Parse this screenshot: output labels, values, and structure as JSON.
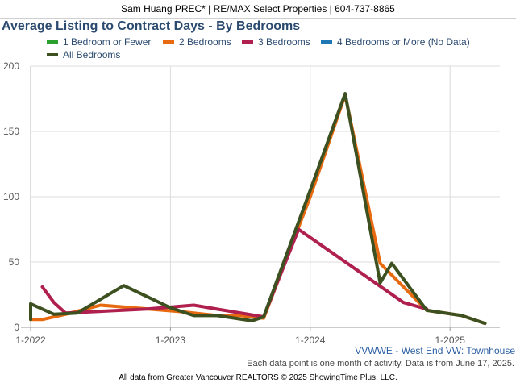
{
  "header": {
    "text": "Sam Huang PREC* | RE/MAX Select Properties | 604-737-8865"
  },
  "chart_data": {
    "type": "line",
    "title": "Average Listing to Contract Days - By Bedrooms",
    "xlabel": "",
    "ylabel": "",
    "ylim": [
      0,
      200
    ],
    "y_ticks": [
      0,
      50,
      100,
      150,
      200
    ],
    "x_tick_labels": [
      "1-2022",
      "1-2023",
      "1-2024",
      "1-2025"
    ],
    "x_tick_months": [
      0,
      12,
      24,
      36
    ],
    "xlim": [
      0,
      43
    ],
    "grid": true,
    "legend_position": "top",
    "series": [
      {
        "name": "1 Bedroom or Fewer",
        "color": "#2ca02c",
        "points": []
      },
      {
        "name": "2 Bedrooms",
        "color": "#e86a10",
        "points": [
          [
            -1,
            6
          ],
          [
            1,
            6
          ],
          [
            3,
            10
          ],
          [
            6,
            17
          ],
          [
            13,
            12
          ],
          [
            16,
            9
          ],
          [
            18,
            9
          ],
          [
            19,
            8
          ],
          [
            20,
            7
          ],
          [
            24,
            100
          ],
          [
            27,
            178
          ],
          [
            30,
            49
          ],
          [
            34,
            13
          ],
          [
            37,
            9
          ],
          [
            39,
            3
          ]
        ]
      },
      {
        "name": "3 Bedrooms",
        "color": "#b0204e",
        "points": [
          [
            1,
            31
          ],
          [
            2,
            19
          ],
          [
            3,
            11
          ],
          [
            10,
            14
          ],
          [
            14,
            17
          ],
          [
            20,
            8
          ],
          [
            23,
            75
          ],
          [
            32,
            19
          ],
          [
            34,
            14
          ]
        ]
      },
      {
        "name": "4 Bedrooms or More (No Data)",
        "color": "#1f77b4",
        "points": []
      },
      {
        "name": "All Bedrooms",
        "color": "#3d5020",
        "points": [
          [
            -1,
            6
          ],
          [
            0,
            18
          ],
          [
            2,
            10
          ],
          [
            4,
            11
          ],
          [
            8,
            32
          ],
          [
            12,
            15
          ],
          [
            14,
            9
          ],
          [
            16,
            9
          ],
          [
            19,
            5
          ],
          [
            20,
            8
          ],
          [
            24,
            105
          ],
          [
            27,
            179
          ],
          [
            30,
            34
          ],
          [
            31,
            49
          ],
          [
            34,
            13
          ],
          [
            37,
            9
          ],
          [
            39,
            3
          ]
        ]
      }
    ]
  },
  "footer": {
    "watermark": "VVWWE - West End VW: Townhouse",
    "note": "Each data point is one month of activity. Data is from June 17, 2025.",
    "source": "All data from Greater Vancouver REALTORS © 2025 ShowingTime Plus, LLC."
  }
}
